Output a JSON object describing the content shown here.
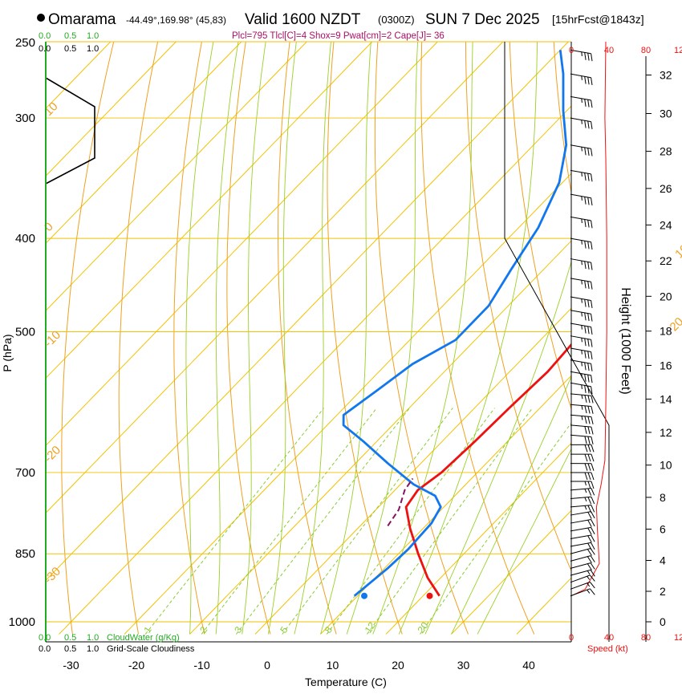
{
  "header": {
    "station": "Omarama",
    "coords": "-44.49°,169.98° (45,83)",
    "valid": "Valid 1600 NZDT",
    "utc": "(0300Z)",
    "date": "SUN 7 Dec 2025",
    "forecast": "[15hrFcst@1843z]",
    "indices": "Plcl=795 Tlcl[C]=4 Shox=9 Pwat[cm]=2 Cape[J]= 36"
  },
  "cloud_scale_top": {
    "green": [
      "0.0",
      "0.5",
      "1.0"
    ],
    "black": [
      "0.0",
      "0.5",
      "1.0"
    ]
  },
  "cloud_scale_bottom": {
    "green": [
      "0.0",
      "0.5",
      "1.0"
    ],
    "green_label": "CloudWater (g/Kg)",
    "black": [
      "0.0",
      "0.5",
      "1.0"
    ],
    "black_label": "Grid-Scale Cloudiness"
  },
  "speed_scale": {
    "values": [
      "0",
      "40",
      "80",
      "120"
    ],
    "label": "Speed (kt)"
  },
  "colors": {
    "temperature": "#ee1111",
    "dewpoint": "#1177ee",
    "parcel": "#8a1060",
    "isotherm": "#f2c200",
    "dry_adiabat": "#f0a020",
    "moist_adiabat": "#9ad028",
    "mixing_ratio": "#88cc33",
    "cloud_green": "#22aa22",
    "title_purple": "#aa1166",
    "speed_red": "#ee1111"
  },
  "chart_data": {
    "type": "line",
    "title": "Omarama skew-T log-P sounding",
    "xlabel": "Temperature (C)",
    "ylabel": "P (hPa)",
    "y2label": "Height (1000 Feet)",
    "xlim": [
      -35,
      45
    ],
    "ylim": [
      1020,
      250
    ],
    "x_ticks": [
      -30,
      -20,
      -10,
      0,
      10,
      20,
      30,
      40
    ],
    "p_ticks": [
      250,
      300,
      400,
      500,
      700,
      850,
      1000
    ],
    "height_ticks": [
      0,
      2,
      4,
      6,
      8,
      10,
      12,
      14,
      16,
      18,
      20,
      22,
      24,
      26,
      28,
      30,
      32
    ],
    "mixing_ratio_labels": [
      "1",
      "2",
      "3",
      "5",
      "8",
      "12",
      "20"
    ],
    "isotherm_labels": [
      "10",
      "0",
      "-10",
      "-20",
      "-30",
      "0",
      "10",
      "20",
      "30"
    ],
    "series": [
      {
        "name": "Temperature",
        "points": [
          [
            22.5,
            940
          ],
          [
            18,
            900
          ],
          [
            13,
            850
          ],
          [
            8,
            800
          ],
          [
            4.2,
            760
          ],
          [
            3.5,
            730
          ],
          [
            4.5,
            700
          ],
          [
            5,
            650
          ],
          [
            5.3,
            600
          ],
          [
            5.8,
            550
          ],
          [
            5.2,
            500
          ],
          [
            3.6,
            460
          ],
          [
            1,
            420
          ],
          [
            -3.5,
            380
          ],
          [
            -9,
            340
          ],
          [
            -15,
            310
          ],
          [
            -22,
            280
          ],
          [
            -28,
            260
          ]
        ]
      },
      {
        "name": "Dewpoint",
        "points": [
          [
            9.5,
            940
          ],
          [
            10.5,
            880
          ],
          [
            10.8,
            840
          ],
          [
            10.5,
            790
          ],
          [
            9.5,
            760
          ],
          [
            7,
            740
          ],
          [
            2,
            720
          ],
          [
            -5,
            685
          ],
          [
            -12,
            650
          ],
          [
            -17.5,
            625
          ],
          [
            -19,
            610
          ],
          [
            -17.5,
            575
          ],
          [
            -16,
            540
          ],
          [
            -13,
            510
          ],
          [
            -13,
            470
          ],
          [
            -15,
            430
          ],
          [
            -17,
            390
          ],
          [
            -20.5,
            350
          ],
          [
            -25,
            320
          ],
          [
            -30.5,
            295
          ],
          [
            -36,
            270
          ],
          [
            -40,
            255
          ]
        ]
      },
      {
        "name": "Parcel",
        "points": [
          [
            4.2,
            795
          ],
          [
            3.5,
            765
          ],
          [
            1.5,
            730
          ],
          [
            1,
            710
          ]
        ]
      }
    ],
    "surface": {
      "temperature": 21,
      "dewpoint": 11,
      "pressure": 940
    },
    "wind_speed_profile": [
      [
        0,
        940
      ],
      [
        15,
        925
      ],
      [
        30,
        870
      ],
      [
        28,
        800
      ],
      [
        27,
        760
      ],
      [
        32,
        720
      ],
      [
        36,
        680
      ],
      [
        37,
        600
      ],
      [
        38,
        500
      ],
      [
        38,
        400
      ],
      [
        37,
        330
      ],
      [
        36,
        300
      ],
      [
        37,
        250
      ]
    ],
    "wind_barbs": [
      {
        "p": 940,
        "dir": 250,
        "spd": 15
      },
      {
        "p": 925,
        "dir": 250,
        "spd": 15
      },
      {
        "p": 910,
        "dir": 250,
        "spd": 15
      },
      {
        "p": 895,
        "dir": 255,
        "spd": 15
      },
      {
        "p": 880,
        "dir": 255,
        "spd": 20
      },
      {
        "p": 865,
        "dir": 255,
        "spd": 20
      },
      {
        "p": 850,
        "dir": 255,
        "spd": 20
      },
      {
        "p": 835,
        "dir": 260,
        "spd": 20
      },
      {
        "p": 820,
        "dir": 260,
        "spd": 20
      },
      {
        "p": 805,
        "dir": 260,
        "spd": 20
      },
      {
        "p": 790,
        "dir": 260,
        "spd": 20
      },
      {
        "p": 775,
        "dir": 260,
        "spd": 20
      },
      {
        "p": 760,
        "dir": 265,
        "spd": 25
      },
      {
        "p": 745,
        "dir": 265,
        "spd": 25
      },
      {
        "p": 730,
        "dir": 265,
        "spd": 25
      },
      {
        "p": 715,
        "dir": 270,
        "spd": 25
      },
      {
        "p": 700,
        "dir": 270,
        "spd": 30
      },
      {
        "p": 685,
        "dir": 270,
        "spd": 30
      },
      {
        "p": 670,
        "dir": 270,
        "spd": 30
      },
      {
        "p": 655,
        "dir": 270,
        "spd": 30
      },
      {
        "p": 640,
        "dir": 275,
        "spd": 30
      },
      {
        "p": 625,
        "dir": 275,
        "spd": 30
      },
      {
        "p": 610,
        "dir": 275,
        "spd": 35
      },
      {
        "p": 595,
        "dir": 275,
        "spd": 35
      },
      {
        "p": 580,
        "dir": 275,
        "spd": 35
      },
      {
        "p": 565,
        "dir": 280,
        "spd": 35
      },
      {
        "p": 550,
        "dir": 280,
        "spd": 35
      },
      {
        "p": 535,
        "dir": 280,
        "spd": 35
      },
      {
        "p": 520,
        "dir": 280,
        "spd": 35
      },
      {
        "p": 505,
        "dir": 280,
        "spd": 35
      },
      {
        "p": 490,
        "dir": 280,
        "spd": 35
      },
      {
        "p": 475,
        "dir": 280,
        "spd": 35
      },
      {
        "p": 460,
        "dir": 280,
        "spd": 35
      },
      {
        "p": 440,
        "dir": 280,
        "spd": 35
      },
      {
        "p": 420,
        "dir": 280,
        "spd": 35
      },
      {
        "p": 400,
        "dir": 280,
        "spd": 35
      },
      {
        "p": 380,
        "dir": 280,
        "spd": 35
      },
      {
        "p": 360,
        "dir": 280,
        "spd": 35
      },
      {
        "p": 340,
        "dir": 280,
        "spd": 35
      },
      {
        "p": 320,
        "dir": 280,
        "spd": 35
      },
      {
        "p": 300,
        "dir": 280,
        "spd": 35
      },
      {
        "p": 285,
        "dir": 280,
        "spd": 35
      },
      {
        "p": 270,
        "dir": 280,
        "spd": 35
      },
      {
        "p": 255,
        "dir": 280,
        "spd": 35
      }
    ]
  }
}
